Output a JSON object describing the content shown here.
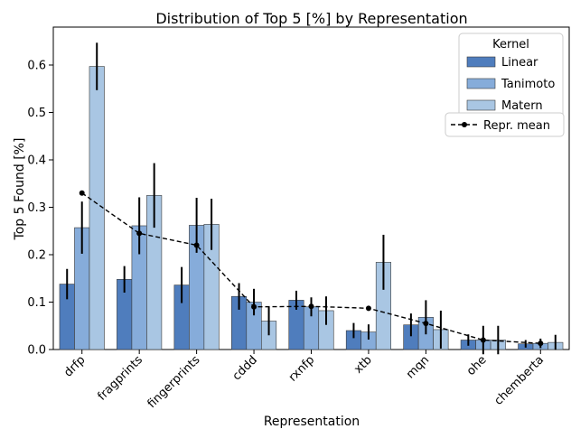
{
  "chart_data": {
    "type": "bar",
    "title": "Distribution of Top 5 [%] by Representation",
    "xlabel": "Representation",
    "ylabel": "Top 5 Found [%]",
    "ylim": [
      0,
      0.68
    ],
    "yticks": [
      "0.0",
      "0.1",
      "0.2",
      "0.3",
      "0.4",
      "0.5",
      "0.6"
    ],
    "categories": [
      "drfp",
      "fragprints",
      "fingerprints",
      "cddd",
      "rxnfp",
      "xtb",
      "mqn",
      "ohe",
      "chemberta"
    ],
    "legend_title": "Kernel",
    "legend_position": "top-right",
    "series": [
      {
        "name": "Linear",
        "color": "#4f7dbd",
        "values": [
          0.138,
          0.148,
          0.136,
          0.112,
          0.104,
          0.04,
          0.052,
          0.02,
          0.012
        ],
        "errors": [
          0.032,
          0.028,
          0.038,
          0.028,
          0.02,
          0.016,
          0.024,
          0.012,
          0.008
        ]
      },
      {
        "name": "Tanimoto",
        "color": "#86acda",
        "values": [
          0.257,
          0.261,
          0.262,
          0.1,
          0.09,
          0.037,
          0.068,
          0.02,
          0.013
        ],
        "errors": [
          0.055,
          0.06,
          0.058,
          0.028,
          0.02,
          0.016,
          0.036,
          0.03,
          0.01
        ],
        "negative_tail": [
          0.0
        ]
      },
      {
        "name": "Matern",
        "color": "#a9c6e3",
        "values": [
          0.597,
          0.325,
          0.264,
          0.06,
          0.082,
          0.184,
          0.042,
          0.02,
          0.015
        ],
        "errors": [
          0.05,
          0.068,
          0.054,
          0.03,
          0.03,
          0.058,
          0.04,
          0.03,
          0.016
        ]
      }
    ],
    "mean_line": {
      "name": "Repr. mean",
      "color": "#000000",
      "values": [
        0.33,
        0.245,
        0.22,
        0.09,
        0.091,
        0.087,
        0.055,
        0.02,
        0.013
      ]
    }
  }
}
